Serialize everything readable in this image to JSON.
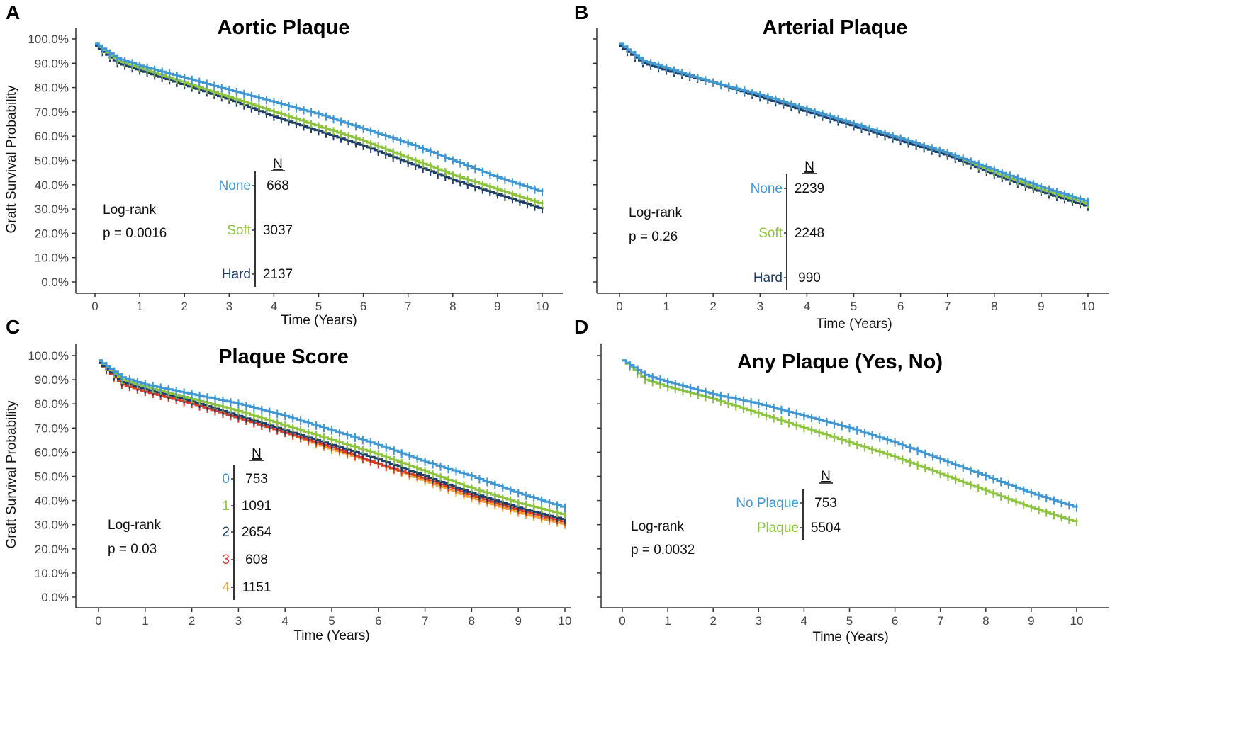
{
  "figure": {
    "panel_labels": [
      "A",
      "B",
      "C",
      "D"
    ]
  },
  "chart_data": [
    {
      "panel": "A",
      "type": "line",
      "title": "Aortic Plaque",
      "xlabel": "Time (Years)",
      "ylabel": "Graft Survival Probability",
      "xlim": [
        0,
        10
      ],
      "ylim": [
        0,
        1
      ],
      "x_ticks": [
        "0",
        "1",
        "2",
        "3",
        "4",
        "5",
        "6",
        "7",
        "8",
        "9",
        "10"
      ],
      "y_ticks": [
        "0.0%",
        "10.0%",
        "20.0%",
        "30.0%",
        "40.0%",
        "50.0%",
        "60.0%",
        "70.0%",
        "80.0%",
        "90.0%",
        "100.0%"
      ],
      "grid": false,
      "legend_header": "N",
      "annotation": [
        "Log-rank",
        "p = 0.0016"
      ],
      "series": [
        {
          "name": "None",
          "n": "668",
          "color": "#3f97d4",
          "x": [
            0,
            0.5,
            1,
            2,
            3,
            4,
            5,
            6,
            7,
            8,
            9,
            10
          ],
          "y": [
            0.98,
            0.92,
            0.89,
            0.84,
            0.79,
            0.74,
            0.69,
            0.63,
            0.57,
            0.5,
            0.43,
            0.37
          ]
        },
        {
          "name": "Soft",
          "n": "3037",
          "color": "#8cc43e",
          "x": [
            0,
            0.5,
            1,
            2,
            3,
            4,
            5,
            6,
            7,
            8,
            9,
            10
          ],
          "y": [
            0.98,
            0.91,
            0.88,
            0.82,
            0.76,
            0.7,
            0.64,
            0.58,
            0.51,
            0.44,
            0.38,
            0.32
          ]
        },
        {
          "name": "Hard",
          "n": "2137",
          "color": "#1e3d6b",
          "x": [
            0,
            0.5,
            1,
            2,
            3,
            4,
            5,
            6,
            7,
            8,
            9,
            10
          ],
          "y": [
            0.97,
            0.9,
            0.87,
            0.81,
            0.75,
            0.68,
            0.62,
            0.56,
            0.49,
            0.42,
            0.36,
            0.3
          ]
        }
      ]
    },
    {
      "panel": "B",
      "type": "line",
      "title": "Arterial Plaque",
      "xlabel": "Time (Years)",
      "ylabel": "",
      "xlim": [
        0,
        10
      ],
      "ylim": [
        0,
        1
      ],
      "x_ticks": [
        "0",
        "1",
        "2",
        "3",
        "4",
        "5",
        "6",
        "7",
        "8",
        "9",
        "10"
      ],
      "y_ticks": [],
      "grid": false,
      "legend_header": "N",
      "annotation": [
        "Log-rank",
        "p = 0.26"
      ],
      "series": [
        {
          "name": "None",
          "n": "2239",
          "color": "#3f97d4",
          "x": [
            0,
            0.5,
            1,
            2,
            3,
            4,
            5,
            6,
            7,
            8,
            9,
            10
          ],
          "y": [
            0.98,
            0.91,
            0.88,
            0.82,
            0.77,
            0.71,
            0.65,
            0.59,
            0.53,
            0.46,
            0.39,
            0.33
          ]
        },
        {
          "name": "Soft",
          "n": "2248",
          "color": "#8cc43e",
          "x": [
            0,
            0.5,
            1,
            2,
            3,
            4,
            5,
            6,
            7,
            8,
            9,
            10
          ],
          "y": [
            0.98,
            0.91,
            0.88,
            0.82,
            0.77,
            0.71,
            0.65,
            0.59,
            0.53,
            0.45,
            0.38,
            0.32
          ]
        },
        {
          "name": "Hard",
          "n": "990",
          "color": "#1e3d6b",
          "x": [
            0,
            0.5,
            1,
            2,
            3,
            4,
            5,
            6,
            7,
            8,
            9,
            10
          ],
          "y": [
            0.97,
            0.9,
            0.87,
            0.82,
            0.76,
            0.7,
            0.64,
            0.58,
            0.52,
            0.44,
            0.37,
            0.31
          ]
        }
      ]
    },
    {
      "panel": "C",
      "type": "line",
      "title": "Plaque Score",
      "xlabel": "Time (Years)",
      "ylabel": "Graft Survival Probability",
      "xlim": [
        0,
        10
      ],
      "ylim": [
        0,
        1
      ],
      "x_ticks": [
        "0",
        "1",
        "2",
        "3",
        "4",
        "5",
        "6",
        "7",
        "8",
        "9",
        "10"
      ],
      "y_ticks": [
        "0.0%",
        "10.0%",
        "20.0%",
        "30.0%",
        "40.0%",
        "50.0%",
        "60.0%",
        "70.0%",
        "80.0%",
        "90.0%",
        "100.0%"
      ],
      "grid": false,
      "legend_header": "N",
      "annotation": [
        "Log-rank",
        "p = 0.03"
      ],
      "series": [
        {
          "name": "0",
          "n": "753",
          "color": "#3f97d4",
          "x": [
            0,
            0.5,
            1,
            2,
            3,
            4,
            5,
            6,
            7,
            8,
            9,
            10
          ],
          "y": [
            0.98,
            0.91,
            0.88,
            0.84,
            0.8,
            0.75,
            0.69,
            0.63,
            0.56,
            0.5,
            0.43,
            0.37
          ]
        },
        {
          "name": "1",
          "n": "1091",
          "color": "#8cc43e",
          "x": [
            0,
            0.5,
            1,
            2,
            3,
            4,
            5,
            6,
            7,
            8,
            9,
            10
          ],
          "y": [
            0.98,
            0.9,
            0.87,
            0.82,
            0.77,
            0.71,
            0.65,
            0.59,
            0.52,
            0.45,
            0.39,
            0.34
          ]
        },
        {
          "name": "2",
          "n": "2654",
          "color": "#1e3d6b",
          "x": [
            0,
            0.5,
            1,
            2,
            3,
            4,
            5,
            6,
            7,
            8,
            9,
            10
          ],
          "y": [
            0.97,
            0.89,
            0.86,
            0.81,
            0.75,
            0.69,
            0.63,
            0.57,
            0.5,
            0.43,
            0.37,
            0.32
          ]
        },
        {
          "name": "3",
          "n": "608",
          "color": "#d93b2b",
          "x": [
            0,
            0.5,
            1,
            2,
            3,
            4,
            5,
            6,
            7,
            8,
            9,
            10
          ],
          "y": [
            0.97,
            0.88,
            0.85,
            0.8,
            0.74,
            0.68,
            0.62,
            0.55,
            0.49,
            0.42,
            0.36,
            0.31
          ]
        },
        {
          "name": "4",
          "n": "1151",
          "color": "#f0a22e",
          "x": [
            0,
            0.5,
            1,
            2,
            3,
            4,
            5,
            6,
            7,
            8,
            9,
            10
          ],
          "y": [
            0.97,
            0.88,
            0.85,
            0.8,
            0.74,
            0.68,
            0.61,
            0.55,
            0.48,
            0.41,
            0.35,
            0.3
          ]
        }
      ]
    },
    {
      "panel": "D",
      "type": "line",
      "title": "Any Plaque (Yes, No)",
      "xlabel": "Time (Years)",
      "ylabel": "",
      "xlim": [
        0,
        10
      ],
      "ylim": [
        0,
        1
      ],
      "x_ticks": [
        "0",
        "1",
        "2",
        "3",
        "4",
        "5",
        "6",
        "7",
        "8",
        "9",
        "10"
      ],
      "y_ticks": [],
      "grid": false,
      "legend_header": "N",
      "annotation": [
        "Log-rank",
        "p = 0.0032"
      ],
      "series": [
        {
          "name": "No Plaque",
          "n": "753",
          "color": "#3f97d4",
          "x": [
            0,
            0.5,
            1,
            2,
            3,
            4,
            5,
            6,
            7,
            8,
            9,
            10
          ],
          "y": [
            0.98,
            0.92,
            0.89,
            0.84,
            0.8,
            0.75,
            0.7,
            0.64,
            0.57,
            0.5,
            0.43,
            0.37
          ]
        },
        {
          "name": "Plaque",
          "n": "5504",
          "color": "#8cc43e",
          "x": [
            0,
            0.5,
            1,
            2,
            3,
            4,
            5,
            6,
            7,
            8,
            9,
            10
          ],
          "y": [
            0.98,
            0.9,
            0.87,
            0.82,
            0.76,
            0.7,
            0.64,
            0.58,
            0.51,
            0.44,
            0.37,
            0.31
          ]
        }
      ]
    }
  ]
}
